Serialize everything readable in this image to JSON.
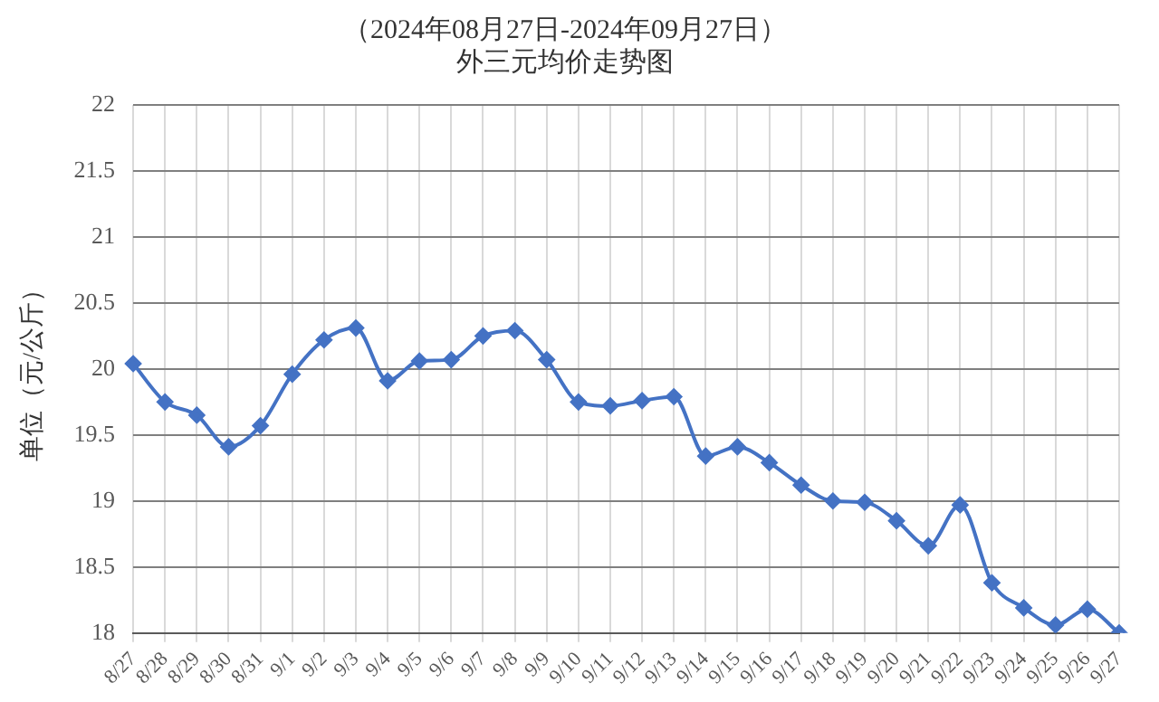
{
  "chart_data": {
    "type": "line",
    "title": "（2024年08月27日-2024年09月27日）",
    "subtitle": "外三元均价走势图",
    "ylabel": "单位（元/公斤）",
    "categories": [
      "8/27",
      "8/28",
      "8/29",
      "8/30",
      "8/31",
      "9/1",
      "9/2",
      "9/3",
      "9/4",
      "9/5",
      "9/6",
      "9/7",
      "9/8",
      "9/9",
      "9/10",
      "9/11",
      "9/12",
      "9/13",
      "9/14",
      "9/15",
      "9/16",
      "9/17",
      "9/18",
      "9/19",
      "9/20",
      "9/21",
      "9/22",
      "9/23",
      "9/24",
      "9/25",
      "9/26",
      "9/27"
    ],
    "series": [
      {
        "color": "#4472c4",
        "values": [
          20.04,
          19.75,
          19.65,
          19.41,
          19.57,
          19.96,
          20.22,
          20.31,
          19.91,
          20.06,
          20.07,
          20.25,
          20.29,
          20.07,
          19.75,
          19.72,
          19.76,
          19.79,
          19.34,
          19.41,
          19.29,
          19.12,
          19.0,
          18.99,
          18.85,
          18.66,
          18.97,
          18.38,
          18.19,
          18.06,
          18.18,
          18.0
        ]
      }
    ],
    "ylim": [
      18,
      22
    ],
    "yticks": [
      18,
      18.5,
      19,
      19.5,
      20,
      20.5,
      21,
      21.5,
      22
    ],
    "grid": true,
    "legend": false,
    "marker": "diamond",
    "line_style": "solid"
  }
}
